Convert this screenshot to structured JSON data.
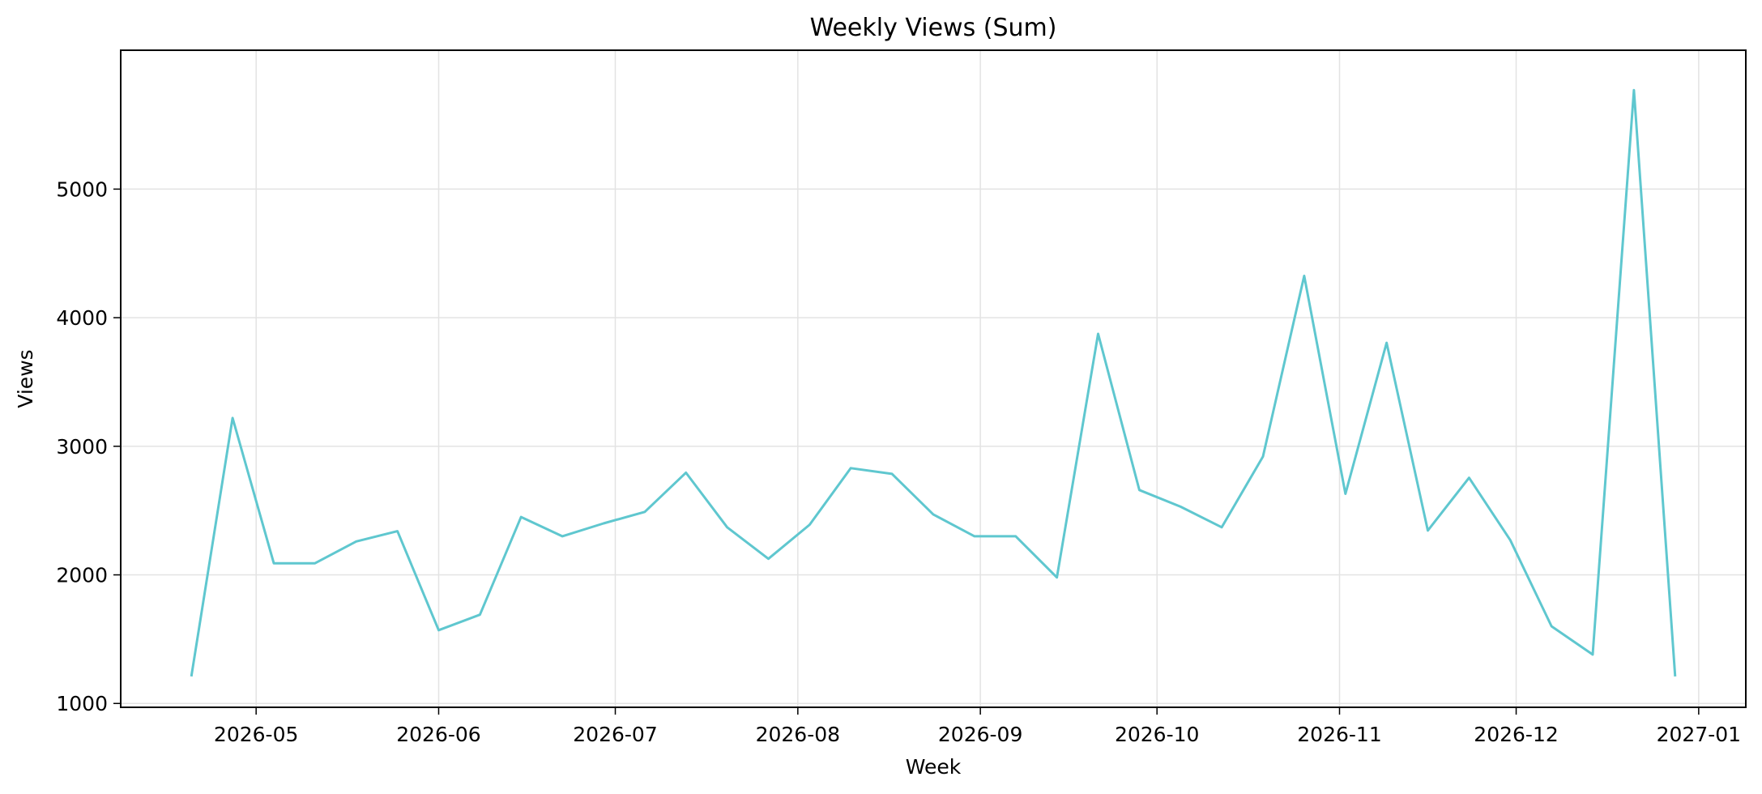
{
  "chart_data": {
    "type": "line",
    "title": "Weekly Views (Sum)",
    "xlabel": "Week",
    "ylabel": "Views",
    "x_ticks": [
      "2026-05",
      "2026-06",
      "2026-07",
      "2026-08",
      "2026-09",
      "2026-10",
      "2026-11",
      "2026-12",
      "2027-01"
    ],
    "x_tick_dates": [
      "2026-05-01",
      "2026-06-01",
      "2026-07-01",
      "2026-08-01",
      "2026-09-01",
      "2026-10-01",
      "2026-11-01",
      "2026-12-01",
      "2027-01-01"
    ],
    "y_ticks": [
      1000,
      2000,
      3000,
      4000,
      5000
    ],
    "xlim": [
      "2026-04-08",
      "2027-01-09"
    ],
    "ylim": [
      970,
      6080
    ],
    "grid": true,
    "line_color": "#5fc7cf",
    "series": [
      {
        "x": [
          "2026-04-20",
          "2026-04-27",
          "2026-05-04",
          "2026-05-11",
          "2026-05-18",
          "2026-05-25",
          "2026-06-01",
          "2026-06-08",
          "2026-06-15",
          "2026-06-22",
          "2026-06-29",
          "2026-07-06",
          "2026-07-13",
          "2026-07-20",
          "2026-07-27",
          "2026-08-03",
          "2026-08-10",
          "2026-08-17",
          "2026-08-24",
          "2026-08-31",
          "2026-09-07",
          "2026-09-14",
          "2026-09-21",
          "2026-09-28",
          "2026-10-05",
          "2026-10-12",
          "2026-10-19",
          "2026-10-26",
          "2026-11-02",
          "2026-11-09",
          "2026-11-16",
          "2026-11-23",
          "2026-11-30",
          "2026-12-07",
          "2026-12-14",
          "2026-12-21",
          "2026-12-28"
        ],
        "y": [
          1210,
          3220,
          2090,
          2090,
          2260,
          2340,
          1570,
          1690,
          2450,
          2300,
          2400,
          2490,
          2795,
          2370,
          2125,
          2390,
          2830,
          2785,
          2470,
          2300,
          2300,
          1980,
          3875,
          2660,
          2530,
          2370,
          2920,
          4325,
          2630,
          3805,
          2345,
          2755,
          2270,
          1600,
          1380,
          5770,
          1210
        ]
      }
    ]
  }
}
